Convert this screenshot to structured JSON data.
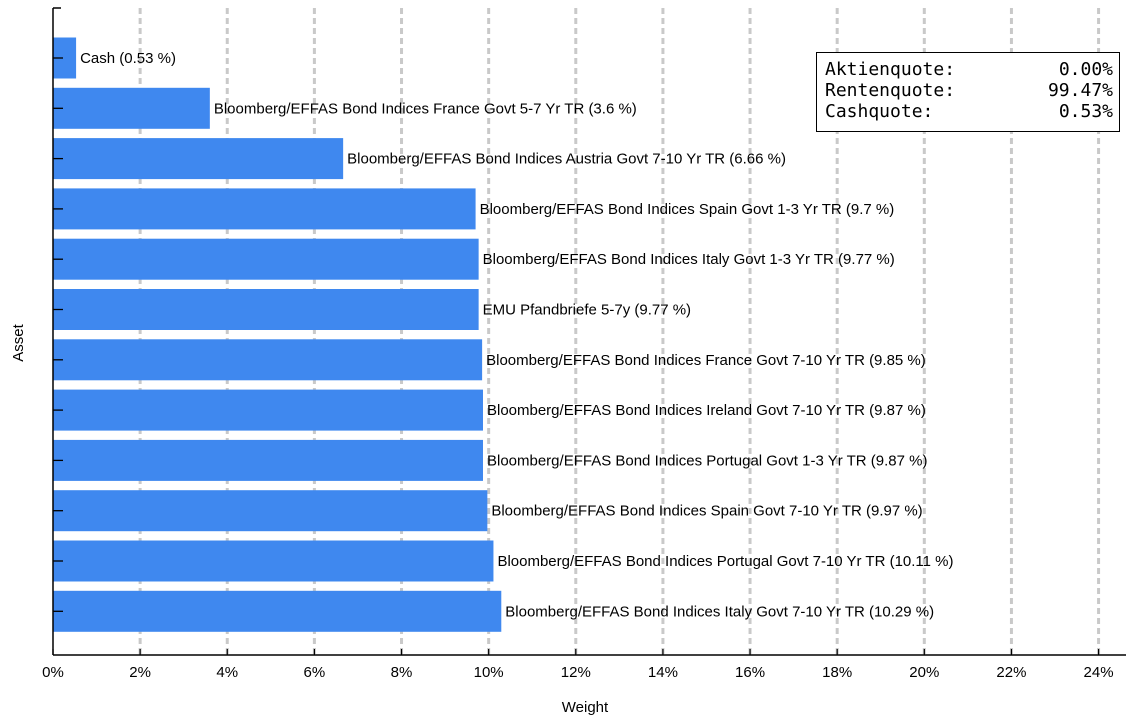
{
  "chart_data": {
    "type": "bar",
    "orientation": "horizontal",
    "xlabel": "Weight",
    "ylabel": "Asset",
    "xlim": [
      0,
      24.4
    ],
    "xticks": [
      0,
      2,
      4,
      6,
      8,
      10,
      12,
      14,
      16,
      18,
      20,
      22,
      24
    ],
    "xtick_labels": [
      "0%",
      "2%",
      "4%",
      "6%",
      "8%",
      "10%",
      "12%",
      "14%",
      "16%",
      "18%",
      "20%",
      "22%",
      "24%"
    ],
    "grid": "vertical dashed",
    "bar_color": "#3f88ef",
    "categories": [
      "Cash (0.53 %)",
      "Bloomberg/EFFAS Bond Indices France Govt 5-7 Yr TR (3.6 %)",
      "Bloomberg/EFFAS Bond Indices Austria Govt 7-10 Yr TR (6.66 %)",
      "Bloomberg/EFFAS Bond Indices Spain Govt 1-3 Yr TR (9.7 %)",
      "Bloomberg/EFFAS Bond Indices Italy Govt 1-3 Yr TR (9.77 %)",
      "EMU Pfandbriefe 5-7y (9.77 %)",
      "Bloomberg/EFFAS Bond Indices France Govt 7-10 Yr TR (9.85 %)",
      "Bloomberg/EFFAS Bond Indices Ireland Govt 7-10 Yr TR (9.87 %)",
      "Bloomberg/EFFAS Bond Indices Portugal Govt 1-3 Yr TR (9.87 %)",
      "Bloomberg/EFFAS Bond Indices Spain Govt 7-10 Yr TR (9.97 %)",
      "Bloomberg/EFFAS Bond Indices Portugal Govt 7-10 Yr TR (10.11 %)",
      "Bloomberg/EFFAS Bond Indices Italy Govt 7-10 Yr TR (10.29 %)"
    ],
    "values": [
      0.53,
      3.6,
      6.66,
      9.7,
      9.77,
      9.77,
      9.85,
      9.87,
      9.87,
      9.97,
      10.11,
      10.29
    ]
  },
  "summary_box": {
    "rows": [
      {
        "label": "Aktienquote:",
        "value": "0.00%"
      },
      {
        "label": "Rentenquote:",
        "value": "99.47%"
      },
      {
        "label": "Cashquote:",
        "value": "0.53%"
      }
    ]
  }
}
